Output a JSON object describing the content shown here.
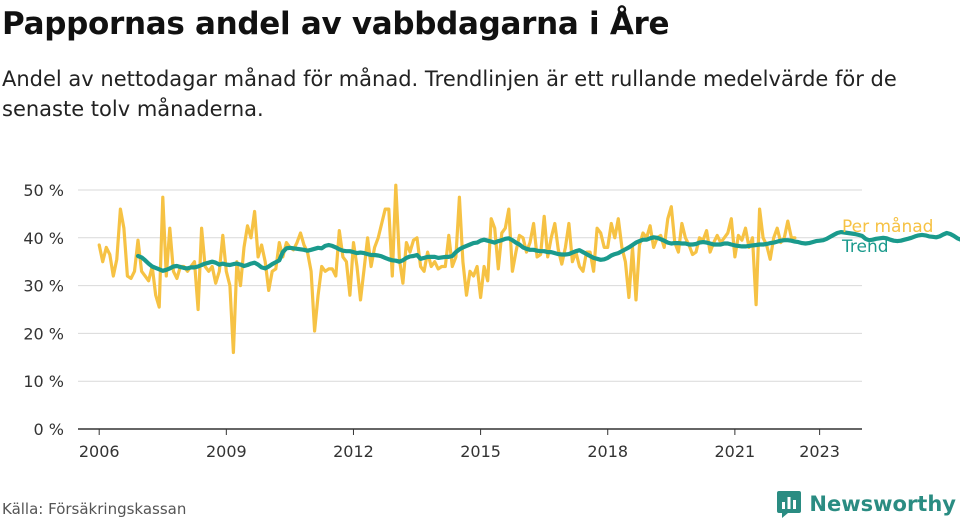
{
  "header": {
    "title": "Pappornas andel av vabbdagarna i Åre",
    "subtitle": "Andel av nettodagar månad för månad. Trendlinjen är ett rullande medelvärde för de senaste tolv månaderna."
  },
  "footer": {
    "source": "Källa: Försäkringskassan",
    "brand": "Newsworthy"
  },
  "colors": {
    "monthly": "#f6c244",
    "trend": "#1a9a8c",
    "grid": "#d9d9d9",
    "axis": "#333333"
  },
  "chart_data": {
    "type": "line",
    "title": "Pappornas andel av vabbdagarna i Åre",
    "xlabel": "",
    "ylabel": "",
    "ylim": [
      0,
      50
    ],
    "xlim": [
      2005.5,
      2024.0
    ],
    "y_ticks": [
      0,
      10,
      20,
      30,
      40,
      50
    ],
    "y_tick_labels": [
      "0 %",
      "10 %",
      "20 %",
      "30 %",
      "40 %",
      "50 %"
    ],
    "x_ticks": [
      2006,
      2009,
      2012,
      2015,
      2018,
      2021,
      2023
    ],
    "x_tick_labels": [
      "2006",
      "2009",
      "2012",
      "2015",
      "2018",
      "2021",
      "2023"
    ],
    "legend": [
      "Per månad",
      "Trend"
    ],
    "series": [
      {
        "name": "Per månad",
        "start": [
          2006,
          1
        ],
        "values": [
          38.5,
          35,
          38,
          36.5,
          32,
          35.5,
          46,
          42,
          32,
          31.5,
          33,
          39.5,
          33,
          32,
          31,
          34,
          28,
          25.5,
          48.5,
          32,
          42,
          33,
          31.5,
          34,
          34,
          33,
          34,
          35,
          25,
          42,
          34,
          33,
          34,
          30.5,
          33,
          40.5,
          33,
          30,
          16,
          35,
          30,
          38,
          42.5,
          40,
          45.5,
          36,
          38.5,
          35,
          29,
          33,
          33.5,
          39,
          36,
          39,
          38,
          37.5,
          39,
          41,
          38.5,
          37,
          33,
          20.5,
          28,
          34,
          33,
          33.5,
          33.5,
          32,
          41.5,
          36,
          35,
          28,
          39,
          34,
          27,
          33.5,
          40,
          34,
          38,
          40,
          43,
          46,
          46,
          32,
          51,
          35.5,
          30.5,
          39,
          37,
          39.5,
          40,
          34,
          33,
          37,
          34,
          35,
          33.5,
          34,
          34,
          40.5,
          34,
          36,
          48.5,
          35,
          28,
          33,
          32,
          34,
          27.5,
          34,
          31,
          44,
          42,
          33.5,
          41,
          42,
          46,
          33,
          37,
          40.5,
          40,
          37,
          39,
          43,
          36,
          36.5,
          44.5,
          36,
          40,
          43,
          37.5,
          34.5,
          38,
          43,
          35,
          37,
          34,
          33,
          37,
          37,
          33,
          42,
          41,
          38,
          38,
          43,
          40,
          44,
          38,
          35,
          27.5,
          38,
          27,
          38.5,
          41,
          40,
          42.5,
          38,
          40,
          40.5,
          38,
          44,
          46.5,
          39,
          37,
          43,
          40,
          38.5,
          36.5,
          37,
          40,
          39.5,
          41.5,
          37,
          39,
          40.5,
          39,
          40,
          41,
          44,
          36,
          40.5,
          39.5,
          42,
          38,
          40,
          26,
          46,
          40,
          38.5,
          35.5,
          40,
          42,
          39,
          40,
          43.5,
          40,
          40
        ]
      },
      {
        "name": "Trend",
        "start": [
          2006,
          12
        ],
        "values": [
          36.2,
          35.9,
          35.3,
          34.6,
          34.0,
          33.7,
          33.4,
          33.1,
          33.3,
          33.6,
          34.0,
          34.1,
          33.9,
          33.7,
          33.6,
          33.8,
          33.8,
          34.0,
          34.3,
          34.6,
          34.8,
          35.0,
          34.8,
          34.4,
          34.6,
          34.4,
          34.3,
          34.5,
          34.6,
          34.4,
          34.1,
          34.3,
          34.6,
          34.8,
          34.4,
          33.8,
          33.6,
          34.0,
          34.5,
          34.9,
          35.3,
          37.0,
          37.8,
          37.9,
          37.8,
          37.7,
          37.6,
          37.5,
          37.3,
          37.5,
          37.7,
          37.9,
          37.8,
          38.3,
          38.5,
          38.3,
          38.0,
          37.6,
          37.3,
          37.2,
          37.2,
          37.0,
          36.8,
          36.9,
          36.8,
          36.6,
          36.4,
          36.4,
          36.3,
          36.1,
          35.8,
          35.5,
          35.3,
          35.2,
          35.0,
          35.3,
          35.8,
          36.1,
          36.2,
          36.4,
          35.6,
          35.8,
          36.0,
          36.0,
          36.0,
          35.8,
          35.9,
          36.0,
          36.0,
          36.2,
          37.0,
          37.6,
          38.0,
          38.3,
          38.6,
          38.9,
          39.0,
          39.4,
          39.6,
          39.4,
          39.2,
          39.0,
          39.3,
          39.5,
          39.8,
          39.9,
          39.5,
          39.0,
          38.6,
          38.0,
          37.7,
          37.5,
          37.5,
          37.3,
          37.2,
          37.2,
          37.0,
          37.0,
          36.8,
          36.6,
          36.5,
          36.5,
          36.6,
          36.9,
          37.2,
          37.4,
          37.0,
          36.6,
          36.2,
          35.8,
          35.6,
          35.4,
          35.5,
          35.8,
          36.3,
          36.6,
          36.8,
          37.2,
          37.6,
          38.0,
          38.5,
          39.0,
          39.3,
          39.6,
          39.6,
          39.9,
          40.1,
          40.0,
          39.7,
          39.4,
          39.0,
          38.8,
          38.9,
          38.9,
          38.8,
          38.8,
          38.6,
          38.6,
          38.7,
          39.0,
          39.1,
          39.0,
          38.8,
          38.6,
          38.6,
          38.6,
          38.8,
          38.8,
          38.6,
          38.4,
          38.3,
          38.2,
          38.2,
          38.3,
          38.4,
          38.5,
          38.6,
          38.6,
          38.7,
          38.9,
          39.0,
          39.2,
          39.4,
          39.5,
          39.5,
          39.4,
          39.2,
          39.1,
          38.9,
          38.8,
          38.9,
          39.1,
          39.3,
          39.4,
          39.5,
          39.8,
          40.2,
          40.6,
          41.0,
          41.2,
          41.1,
          41.0,
          40.9,
          40.8,
          40.6,
          40.4,
          39.8,
          39.5,
          39.6,
          39.8,
          39.9,
          40.0,
          39.9,
          39.6,
          39.4,
          39.3,
          39.4,
          39.6,
          39.8,
          40.0,
          40.3,
          40.5,
          40.6,
          40.5,
          40.3,
          40.2,
          40.1,
          40.3,
          40.7,
          41.0,
          40.8,
          40.4,
          39.9,
          39.6,
          39.7,
          39.9,
          40.0,
          40.0
        ]
      }
    ]
  }
}
